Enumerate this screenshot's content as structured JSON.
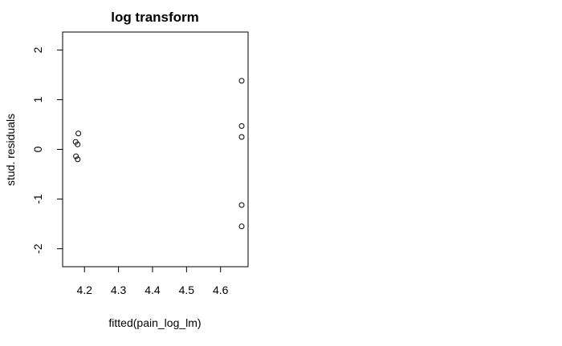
{
  "chart_data": {
    "type": "scatter",
    "title": "log transform",
    "xlabel": "fitted(pain_log_lm)",
    "ylabel": "stud. residuals",
    "xlim": [
      4.157,
      4.662
    ],
    "ylim": [
      -2.2,
      2.2
    ],
    "x_ticks": [
      4.2,
      4.3,
      4.4,
      4.5,
      4.6
    ],
    "x_tick_labels": [
      "4.2",
      "4.3",
      "4.4",
      "4.5",
      "4.6"
    ],
    "y_ticks": [
      -2,
      -1,
      0,
      1,
      2
    ],
    "y_tick_labels": [
      "-2",
      "-1",
      "0",
      "1",
      "2"
    ],
    "grid": false,
    "points": [
      {
        "x": 4.174,
        "y": 0.15
      },
      {
        "x": 4.18,
        "y": 0.1
      },
      {
        "x": 4.182,
        "y": 0.32
      },
      {
        "x": 4.175,
        "y": -0.14
      },
      {
        "x": 4.18,
        "y": -0.2
      },
      {
        "x": 4.662,
        "y": 1.38
      },
      {
        "x": 4.662,
        "y": 0.47
      },
      {
        "x": 4.662,
        "y": 0.25
      },
      {
        "x": 4.662,
        "y": -1.12
      },
      {
        "x": 4.662,
        "y": -1.55
      }
    ]
  }
}
